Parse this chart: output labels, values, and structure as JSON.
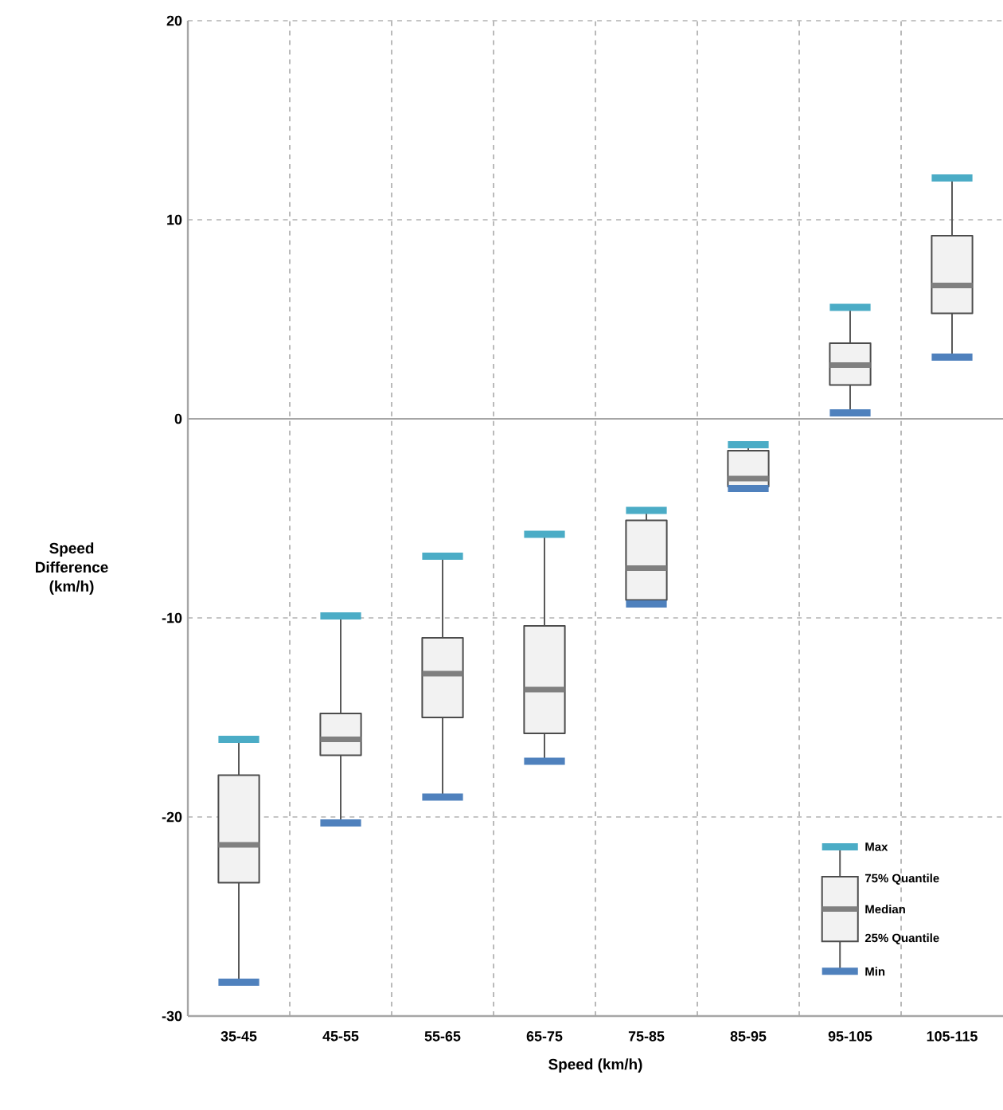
{
  "chart_data": {
    "type": "box",
    "xlabel": "Speed (km/h)",
    "ylabel": "Speed Difference (km/h)",
    "categories": [
      "35-45",
      "45-55",
      "55-65",
      "65-75",
      "75-85",
      "85-95",
      "95-105",
      "105-115"
    ],
    "boxes": [
      {
        "low": -28.3,
        "q1": -23.3,
        "median": -21.4,
        "q3": -17.9,
        "high": -16.1
      },
      {
        "low": -20.3,
        "q1": -16.9,
        "median": -16.1,
        "q3": -14.8,
        "high": -9.9
      },
      {
        "low": -19.0,
        "q1": -15.0,
        "median": -12.8,
        "q3": -11.0,
        "high": -6.9
      },
      {
        "low": -17.2,
        "q1": -15.8,
        "median": -13.6,
        "q3": -10.4,
        "high": -5.8
      },
      {
        "low": -9.3,
        "q1": -9.1,
        "median": -7.5,
        "q3": -5.1,
        "high": -4.6
      },
      {
        "low": -3.5,
        "q1": -3.4,
        "median": -3.0,
        "q3": -1.6,
        "high": -1.3
      },
      {
        "low": 0.3,
        "q1": 1.7,
        "median": 2.7,
        "q3": 3.8,
        "high": 5.6
      },
      {
        "low": 3.1,
        "q1": 5.3,
        "median": 6.7,
        "q3": 9.2,
        "high": 12.1
      }
    ],
    "ylim": [
      -30,
      20
    ],
    "yticks": [
      -30,
      -20,
      -10,
      0,
      10,
      20
    ],
    "ref_lines": [
      {
        "axis": "y",
        "value": 0
      }
    ],
    "grid": true,
    "annotations": [
      "Max",
      "75% Quantile",
      "Median",
      "25% Quantile",
      "Min"
    ]
  }
}
